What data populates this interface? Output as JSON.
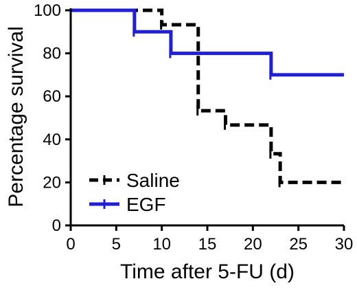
{
  "chart_data": {
    "type": "line",
    "step": true,
    "title": "",
    "xlabel": "Time after 5-FU (d)",
    "ylabel": "Percentage survival",
    "xlim": [
      0,
      30
    ],
    "ylim": [
      0,
      100
    ],
    "xticks": [
      0,
      5,
      10,
      15,
      20,
      25,
      30
    ],
    "yticks": [
      0,
      20,
      40,
      60,
      80,
      100
    ],
    "grid": false,
    "legend_position": "bottom-left",
    "series": [
      {
        "name": "Saline",
        "color": "#000000",
        "style": "dashed",
        "x": [
          0,
          10,
          14,
          17,
          22,
          23,
          30
        ],
        "y": [
          100,
          93.3,
          53.3,
          46.7,
          33.3,
          20,
          20
        ]
      },
      {
        "name": "EGF",
        "color": "#1f1fd6",
        "style": "solid",
        "x": [
          0,
          7,
          11,
          22,
          30
        ],
        "y": [
          100,
          90,
          80,
          70,
          70
        ]
      }
    ]
  }
}
